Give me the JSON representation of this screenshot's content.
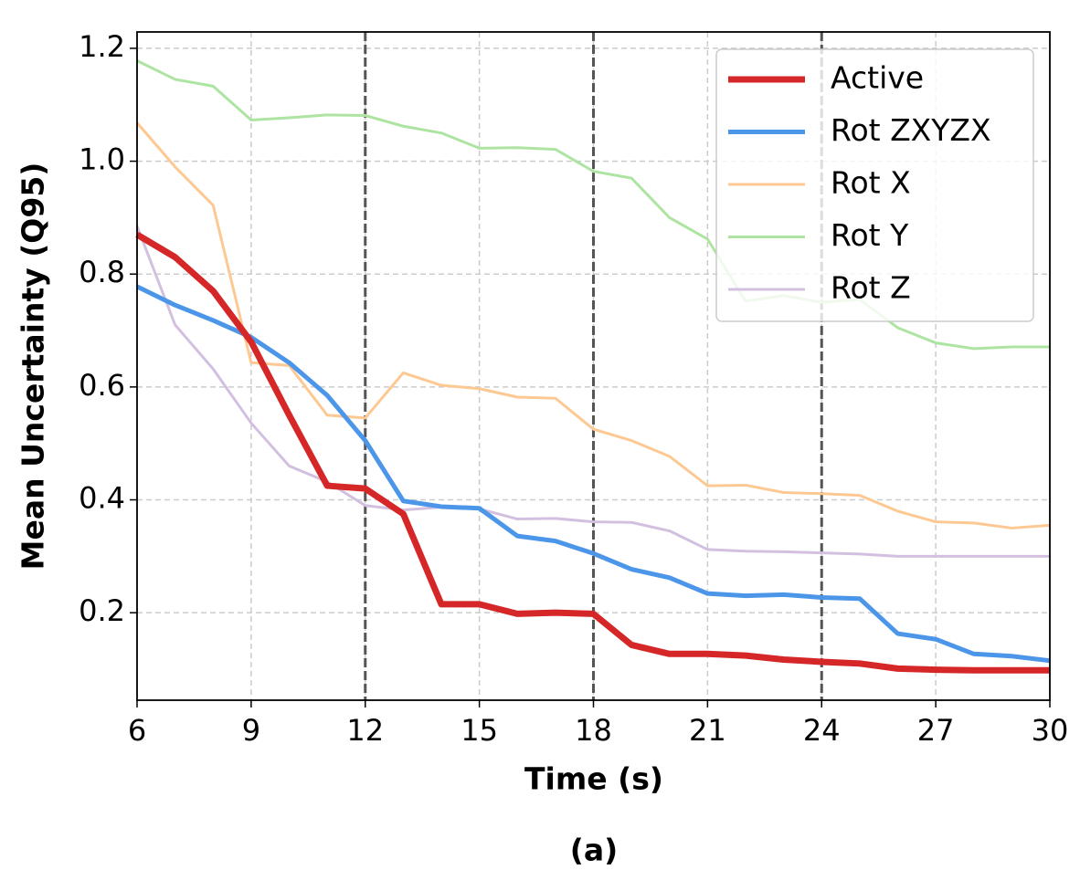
{
  "chart_data": {
    "type": "line",
    "xlabel": "Time (s)",
    "ylabel": "Mean Uncertainty (Q95)",
    "caption": "(a)",
    "x": [
      6,
      7,
      8,
      9,
      10,
      11,
      12,
      13,
      14,
      15,
      16,
      17,
      18,
      19,
      20,
      21,
      22,
      23,
      24,
      25,
      26,
      27,
      28,
      29,
      30
    ],
    "series": [
      {
        "name": "Active",
        "color": "#d62728",
        "width": 7,
        "values": [
          0.87,
          0.83,
          0.77,
          0.68,
          0.55,
          0.425,
          0.42,
          0.375,
          0.215,
          0.215,
          0.198,
          0.2,
          0.198,
          0.143,
          0.127,
          0.127,
          0.124,
          0.117,
          0.113,
          0.11,
          0.101,
          0.099,
          0.098,
          0.098,
          0.098
        ]
      },
      {
        "name": "Rot ZXYZX",
        "color": "#4c96ea",
        "width": 5,
        "values": [
          0.778,
          0.745,
          0.718,
          0.688,
          0.643,
          0.585,
          0.505,
          0.398,
          0.388,
          0.385,
          0.336,
          0.327,
          0.305,
          0.277,
          0.262,
          0.234,
          0.23,
          0.232,
          0.227,
          0.225,
          0.163,
          0.153,
          0.127,
          0.123,
          0.115
        ]
      },
      {
        "name": "Rot X",
        "color": "#fdc892",
        "width": 3,
        "values": [
          1.068,
          0.99,
          0.922,
          0.643,
          0.638,
          0.55,
          0.545,
          0.625,
          0.603,
          0.597,
          0.582,
          0.58,
          0.525,
          0.505,
          0.477,
          0.425,
          0.426,
          0.413,
          0.411,
          0.408,
          0.38,
          0.361,
          0.359,
          0.35,
          0.355
        ]
      },
      {
        "name": "Rot Y",
        "color": "#ade4a2",
        "width": 3,
        "values": [
          1.178,
          1.145,
          1.133,
          1.073,
          1.077,
          1.082,
          1.081,
          1.062,
          1.05,
          1.023,
          1.024,
          1.021,
          0.982,
          0.97,
          0.9,
          0.862,
          0.752,
          0.762,
          0.75,
          0.755,
          0.705,
          0.678,
          0.668,
          0.671,
          0.671
        ]
      },
      {
        "name": "Rot Z",
        "color": "#d3c0e0",
        "width": 3,
        "values": [
          0.885,
          0.71,
          0.632,
          0.536,
          0.46,
          0.432,
          0.39,
          0.382,
          0.387,
          0.384,
          0.366,
          0.367,
          0.361,
          0.36,
          0.345,
          0.312,
          0.309,
          0.308,
          0.306,
          0.304,
          0.3,
          0.3,
          0.3,
          0.3,
          0.3
        ]
      }
    ],
    "xlim": [
      6,
      30
    ],
    "xticks": [
      6,
      9,
      12,
      15,
      18,
      21,
      24,
      27,
      30
    ],
    "ylim": [
      0.045,
      1.229
    ],
    "yticks": [
      0.2,
      0.4,
      0.6,
      0.8,
      {
        "value": 1,
        "label": "1.0"
      },
      1.2
    ],
    "vlines": [
      12,
      18,
      24
    ],
    "grid": true,
    "legend": "upper right"
  }
}
